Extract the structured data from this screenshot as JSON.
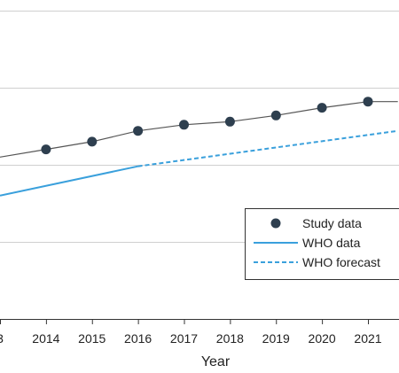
{
  "chart_data": {
    "type": "line",
    "xlabel": "Year",
    "x_ticks": [
      "3",
      "2014",
      "2015",
      "2016",
      "2017",
      "2018",
      "2019",
      "2020",
      "2021"
    ],
    "grid": "horizontal",
    "legend_position": "lower-right",
    "series": [
      {
        "name": "Study data",
        "style": "line-with-markers",
        "color": "#2e3f4f",
        "line_color": "#555555",
        "points": [
          {
            "x": 2013.0,
            "y": 1.35
          },
          {
            "x": 2014.0,
            "y": 1.4
          },
          {
            "x": 2015.0,
            "y": 1.45
          },
          {
            "x": 2016.0,
            "y": 1.52
          },
          {
            "x": 2017.0,
            "y": 1.56
          },
          {
            "x": 2018.0,
            "y": 1.58
          },
          {
            "x": 2019.0,
            "y": 1.62
          },
          {
            "x": 2020.0,
            "y": 1.67
          },
          {
            "x": 2021.0,
            "y": 1.71
          },
          {
            "x": 2021.65,
            "y": 1.71
          }
        ],
        "marker_x": [
          2014,
          2015,
          2016,
          2017,
          2018,
          2019,
          2020,
          2021
        ]
      },
      {
        "name": "WHO data",
        "style": "solid",
        "color": "#3aa0dc",
        "points": [
          {
            "x": 2013.0,
            "y": 1.1
          },
          {
            "x": 2016.0,
            "y": 1.29
          }
        ]
      },
      {
        "name": "WHO forecast",
        "style": "dashed",
        "color": "#3aa0dc",
        "points": [
          {
            "x": 2016.0,
            "y": 1.29
          },
          {
            "x": 2021.65,
            "y": 1.52
          }
        ]
      }
    ]
  }
}
